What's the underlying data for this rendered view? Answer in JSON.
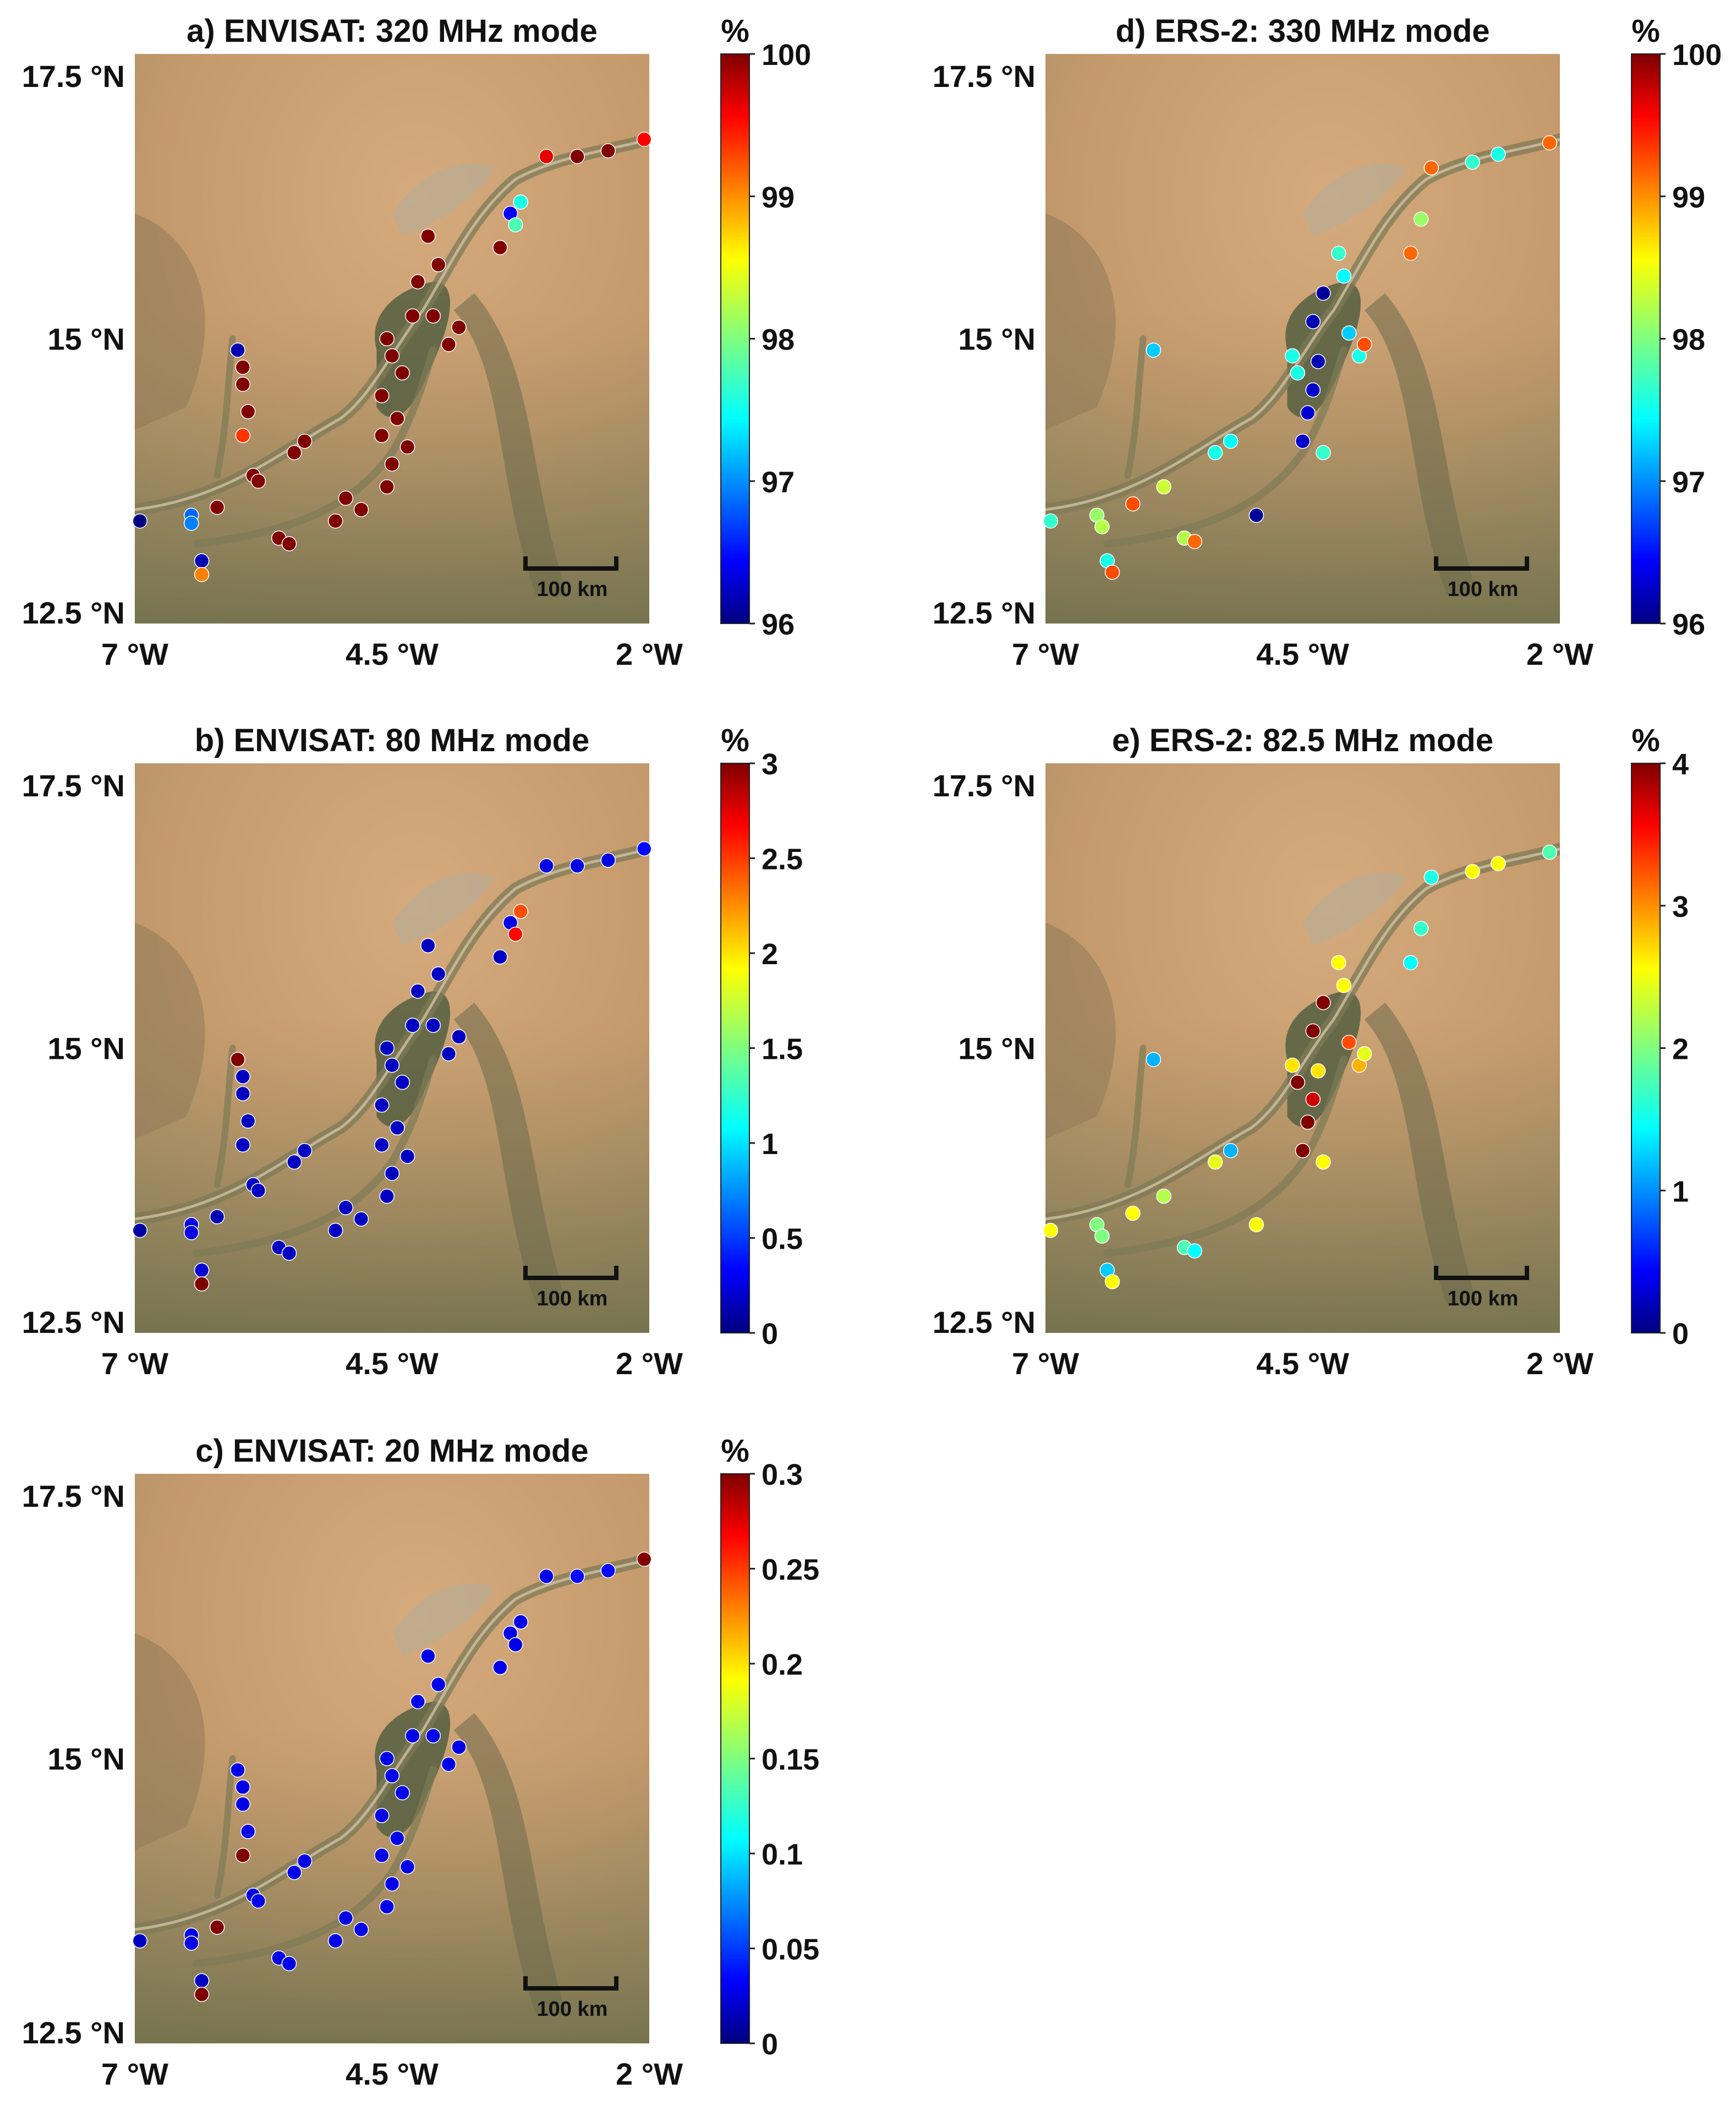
{
  "figure_panels": [
    {
      "id": "a",
      "title": "a) ENVISAT: 320 MHz mode",
      "colorbar": {
        "unit": "%",
        "min": 96,
        "max": 100,
        "ticks": [
          "100",
          "99",
          "98",
          "97",
          "96"
        ]
      },
      "lat_labels": [
        "17.5 °N",
        "15 °N",
        "12.5 °N"
      ],
      "lon_labels": [
        "7 °W",
        "4.5 °W",
        "2 °W"
      ],
      "scale_label": "100 km"
    },
    {
      "id": "b",
      "title": "b) ENVISAT: 80 MHz mode",
      "colorbar": {
        "unit": "%",
        "min": 0,
        "max": 3,
        "ticks": [
          "3",
          "2.5",
          "2",
          "1.5",
          "1",
          "0.5",
          "0"
        ]
      },
      "lat_labels": [
        "17.5 °N",
        "15 °N",
        "12.5 °N"
      ],
      "lon_labels": [
        "7 °W",
        "4.5 °W",
        "2 °W"
      ],
      "scale_label": "100 km"
    },
    {
      "id": "c",
      "title": "c) ENVISAT: 20 MHz mode",
      "colorbar": {
        "unit": "%",
        "min": 0,
        "max": 0.3,
        "ticks": [
          "0.3",
          "0.25",
          "0.2",
          "0.15",
          "0.1",
          "0.05",
          "0"
        ]
      },
      "lat_labels": [
        "17.5 °N",
        "15 °N",
        "12.5 °N"
      ],
      "lon_labels": [
        "7 °W",
        "4.5 °W",
        "2 °W"
      ],
      "scale_label": "100 km"
    },
    {
      "id": "d",
      "title": "d) ERS-2: 330 MHz mode",
      "colorbar": {
        "unit": "%",
        "min": 96,
        "max": 100,
        "ticks": [
          "100",
          "99",
          "98",
          "97",
          "96"
        ]
      },
      "lat_labels": [
        "17.5 °N",
        "15 °N",
        "12.5 °N"
      ],
      "lon_labels": [
        "7 °W",
        "4.5 °W",
        "2 °W"
      ],
      "scale_label": "100 km"
    },
    {
      "id": "e",
      "title": "e) ERS-2: 82.5 MHz mode",
      "colorbar": {
        "unit": "%",
        "min": 0,
        "max": 4,
        "ticks": [
          "4",
          "3",
          "2",
          "1",
          "0"
        ]
      },
      "lat_labels": [
        "17.5 °N",
        "15 °N",
        "12.5 °N"
      ],
      "lon_labels": [
        "7 °W",
        "4.5 °W",
        "2 °W"
      ],
      "scale_label": "100 km"
    }
  ],
  "stations": {
    "envisat_points": [
      {
        "lon": -6.95,
        "lat": 13.4
      },
      {
        "lon": -6.45,
        "lat": 13.45
      },
      {
        "lon": -6.45,
        "lat": 13.38
      },
      {
        "lon": -6.35,
        "lat": 13.05
      },
      {
        "lon": -6.35,
        "lat": 12.93
      },
      {
        "lon": -6.2,
        "lat": 13.52
      },
      {
        "lon": -5.95,
        "lat": 14.15
      },
      {
        "lon": -5.95,
        "lat": 14.6
      },
      {
        "lon": -5.95,
        "lat": 14.75
      },
      {
        "lon": -6.0,
        "lat": 14.9
      },
      {
        "lon": -5.9,
        "lat": 14.36
      },
      {
        "lon": -5.85,
        "lat": 13.8
      },
      {
        "lon": -5.8,
        "lat": 13.75
      },
      {
        "lon": -5.6,
        "lat": 13.25
      },
      {
        "lon": -5.5,
        "lat": 13.2
      },
      {
        "lon": -5.45,
        "lat": 14.0
      },
      {
        "lon": -5.35,
        "lat": 14.1
      },
      {
        "lon": -5.05,
        "lat": 13.4
      },
      {
        "lon": -4.95,
        "lat": 13.6
      },
      {
        "lon": -4.8,
        "lat": 13.5
      },
      {
        "lon": -4.6,
        "lat": 14.5
      },
      {
        "lon": -4.6,
        "lat": 14.15
      },
      {
        "lon": -4.55,
        "lat": 15.0
      },
      {
        "lon": -4.5,
        "lat": 14.85
      },
      {
        "lon": -4.55,
        "lat": 13.7
      },
      {
        "lon": -4.5,
        "lat": 13.9
      },
      {
        "lon": -4.45,
        "lat": 14.3
      },
      {
        "lon": -4.4,
        "lat": 14.7
      },
      {
        "lon": -4.35,
        "lat": 14.05
      },
      {
        "lon": -4.3,
        "lat": 15.2
      },
      {
        "lon": -4.25,
        "lat": 15.5
      },
      {
        "lon": -4.15,
        "lat": 15.9
      },
      {
        "lon": -4.05,
        "lat": 15.65
      },
      {
        "lon": -4.1,
        "lat": 15.2
      },
      {
        "lon": -3.95,
        "lat": 14.95
      },
      {
        "lon": -3.85,
        "lat": 15.1
      },
      {
        "lon": -3.45,
        "lat": 15.8
      },
      {
        "lon": -3.35,
        "lat": 16.1
      },
      {
        "lon": -3.3,
        "lat": 16.0
      },
      {
        "lon": -3.25,
        "lat": 16.2
      },
      {
        "lon": -3.0,
        "lat": 16.6
      },
      {
        "lon": -2.7,
        "lat": 16.6
      },
      {
        "lon": -2.4,
        "lat": 16.65
      },
      {
        "lon": -2.05,
        "lat": 16.75
      }
    ],
    "ers2_points": [
      {
        "lon": -6.95,
        "lat": 13.4
      },
      {
        "lon": -6.5,
        "lat": 13.45
      },
      {
        "lon": -6.45,
        "lat": 13.35
      },
      {
        "lon": -6.4,
        "lat": 13.05
      },
      {
        "lon": -6.35,
        "lat": 12.95
      },
      {
        "lon": -6.15,
        "lat": 13.55
      },
      {
        "lon": -5.95,
        "lat": 14.9
      },
      {
        "lon": -5.85,
        "lat": 13.7
      },
      {
        "lon": -5.65,
        "lat": 13.25
      },
      {
        "lon": -5.55,
        "lat": 13.22
      },
      {
        "lon": -5.35,
        "lat": 14.0
      },
      {
        "lon": -5.2,
        "lat": 14.1
      },
      {
        "lon": -4.95,
        "lat": 13.45
      },
      {
        "lon": -4.6,
        "lat": 14.85
      },
      {
        "lon": -4.55,
        "lat": 14.7
      },
      {
        "lon": -4.5,
        "lat": 14.1
      },
      {
        "lon": -4.45,
        "lat": 14.35
      },
      {
        "lon": -4.4,
        "lat": 14.55
      },
      {
        "lon": -4.35,
        "lat": 14.8
      },
      {
        "lon": -4.4,
        "lat": 15.15
      },
      {
        "lon": -4.3,
        "lat": 15.4
      },
      {
        "lon": -4.3,
        "lat": 14.0
      },
      {
        "lon": -4.15,
        "lat": 15.75
      },
      {
        "lon": -4.1,
        "lat": 15.55
      },
      {
        "lon": -4.05,
        "lat": 15.05
      },
      {
        "lon": -3.95,
        "lat": 14.85
      },
      {
        "lon": -3.9,
        "lat": 14.95
      },
      {
        "lon": -3.45,
        "lat": 15.75
      },
      {
        "lon": -3.35,
        "lat": 16.05
      },
      {
        "lon": -3.25,
        "lat": 16.5
      },
      {
        "lon": -2.85,
        "lat": 16.55
      },
      {
        "lon": -2.6,
        "lat": 16.62
      },
      {
        "lon": -2.1,
        "lat": 16.72
      }
    ]
  },
  "panel_values": {
    "a": [
      96,
      96.9,
      97,
      96.2,
      99.0,
      100,
      99.3,
      100,
      100,
      96.2,
      100,
      100,
      100,
      100,
      100,
      100,
      100,
      100,
      100,
      100,
      100,
      100,
      100,
      100,
      100,
      100,
      100,
      100,
      100,
      100,
      100,
      100,
      100,
      100,
      100,
      100,
      100,
      96.5,
      97.8,
      97.6,
      99.6,
      100,
      100,
      99.5
    ],
    "b": [
      0.1,
      0.3,
      0.3,
      0.25,
      3.0,
      0.15,
      0.2,
      0.2,
      0.2,
      3.0,
      0.2,
      0.2,
      0.2,
      0.2,
      0.2,
      0.2,
      0.2,
      0.2,
      0.2,
      0.2,
      0.2,
      0.2,
      0.2,
      0.2,
      0.2,
      0.2,
      0.2,
      0.2,
      0.2,
      0.2,
      0.2,
      0.2,
      0.2,
      0.2,
      0.2,
      0.2,
      0.2,
      0.3,
      2.6,
      2.4,
      0.3,
      0.3,
      0.3,
      0.4
    ],
    "c": [
      0.02,
      0.03,
      0.03,
      0.02,
      0.3,
      0.3,
      0.3,
      0.03,
      0.03,
      0.03,
      0.03,
      0.03,
      0.03,
      0.03,
      0.03,
      0.03,
      0.03,
      0.03,
      0.03,
      0.03,
      0.03,
      0.03,
      0.03,
      0.03,
      0.03,
      0.03,
      0.03,
      0.03,
      0.03,
      0.03,
      0.03,
      0.03,
      0.03,
      0.03,
      0.03,
      0.03,
      0.03,
      0.03,
      0.03,
      0.03,
      0.03,
      0.04,
      0.04,
      0.3
    ],
    "d": [
      97.7,
      98.1,
      98.2,
      97.6,
      99.2,
      99.2,
      97.3,
      98.3,
      98.2,
      99.1,
      97.6,
      97.5,
      96.1,
      97.6,
      97.6,
      96.3,
      96.3,
      96.3,
      96.2,
      96.2,
      96.1,
      97.7,
      97.7,
      97.5,
      97.3,
      97.6,
      99.2,
      99.1,
      98.1,
      99.1,
      97.7,
      97.6,
      99.1
    ],
    "e": [
      2.5,
      2.0,
      2.0,
      1.3,
      2.5,
      2.5,
      1.2,
      2.2,
      1.8,
      1.5,
      2.4,
      1.2,
      2.5,
      2.6,
      4.0,
      4.0,
      4.0,
      3.7,
      2.6,
      4.0,
      4.0,
      2.5,
      2.5,
      2.5,
      3.2,
      2.8,
      2.4,
      1.5,
      1.7,
      1.6,
      2.5,
      2.5,
      1.8
    ]
  },
  "colors": {
    "map_sand": "#c79b6e",
    "map_sand_dark": "#b3875c",
    "river_vegetation": "#7d7a55",
    "delta_green": "#5b6344",
    "marker_outline": "#ffffff"
  }
}
